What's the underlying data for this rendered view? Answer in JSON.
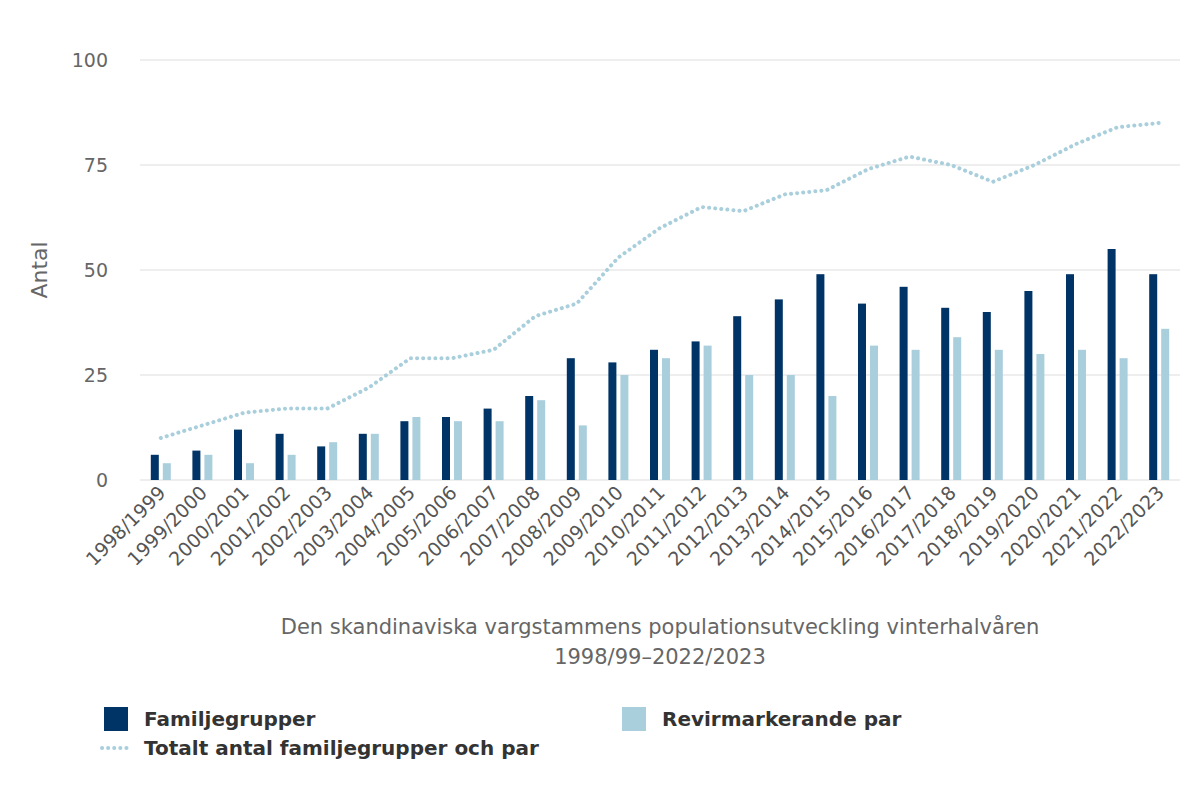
{
  "chart_data": {
    "type": "bar",
    "x_label": [
      "Den skandinaviska vargstammens populationsutveckling vinterhalvåren",
      "1998/99–2022/2023"
    ],
    "y_label": "Antal",
    "categories": [
      "1998/1999",
      "1999/2000",
      "2000/2001",
      "2001/2002",
      "2002/2003",
      "2003/2004",
      "2004/2005",
      "2005/2006",
      "2006/2007",
      "2007/2008",
      "2008/2009",
      "2009/2010",
      "2010/2011",
      "2011/2012",
      "2012/2013",
      "2013/2014",
      "2014/2015",
      "2015/2016",
      "2016/2017",
      "2017/2018",
      "2018/2019",
      "2019/2020",
      "2020/2021",
      "2021/2022",
      "2022/2023"
    ],
    "series": [
      {
        "name": "Familjegrupper",
        "type": "bar",
        "color": "#003366",
        "values": [
          6,
          7,
          12,
          11,
          8,
          11,
          14,
          15,
          17,
          20,
          29,
          28,
          31,
          33,
          39,
          43,
          49,
          42,
          46,
          41,
          40,
          45,
          49,
          55,
          49
        ]
      },
      {
        "name": "Revirmarkerande par",
        "type": "bar",
        "color": "#a9cfdc",
        "values": [
          4,
          6,
          4,
          6,
          9,
          11,
          15,
          14,
          14,
          19,
          13,
          25,
          29,
          32,
          25,
          25,
          20,
          32,
          31,
          34,
          31,
          30,
          31,
          29,
          36
        ]
      },
      {
        "name": "Totalt antal familjegrupper och par",
        "type": "line",
        "color": "#a9cfdc",
        "line_style": "dotted",
        "values": [
          10,
          13,
          16,
          17,
          17,
          22,
          29,
          29,
          31,
          39,
          42,
          53,
          60,
          65,
          64,
          68,
          69,
          74,
          77,
          75,
          71,
          75,
          80,
          84,
          85
        ]
      }
    ],
    "ylim": [
      0,
      100
    ],
    "yticks": [
      0,
      25,
      50,
      75,
      100
    ],
    "grid": true,
    "legend": "bottom"
  }
}
